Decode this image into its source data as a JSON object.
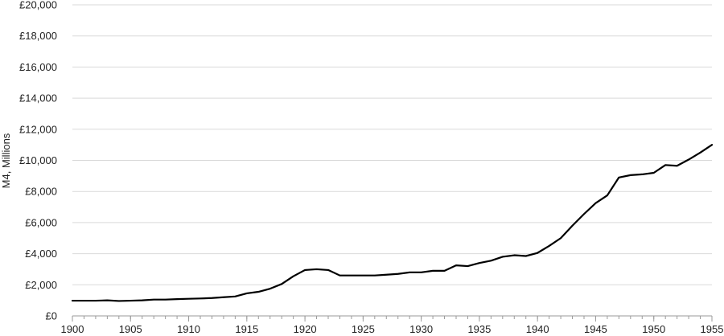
{
  "chart_data": {
    "type": "line",
    "title": "",
    "xlabel": "",
    "ylabel": "M4, Millions",
    "xlim": [
      1900,
      1955
    ],
    "ylim": [
      0,
      20000
    ],
    "grid": true,
    "legend": "none",
    "x_ticks": [
      "1900",
      "1905",
      "1910",
      "1915",
      "1920",
      "1925",
      "1930",
      "1935",
      "1940",
      "1945",
      "1950",
      "1955"
    ],
    "y_ticks": [
      "£0",
      "£2,000",
      "£4,000",
      "£6,000",
      "£8,000",
      "£10,000",
      "£12,000",
      "£14,000",
      "£16,000",
      "£18,000",
      "£20,000"
    ],
    "y_tick_values": [
      0,
      2000,
      4000,
      6000,
      8000,
      10000,
      12000,
      14000,
      16000,
      18000,
      20000
    ],
    "x_tick_values": [
      1900,
      1905,
      1910,
      1915,
      1920,
      1925,
      1930,
      1935,
      1940,
      1945,
      1950,
      1955
    ],
    "series": [
      {
        "color": "#000000",
        "x": [
          1900,
          1901,
          1902,
          1903,
          1904,
          1905,
          1906,
          1907,
          1908,
          1909,
          1910,
          1911,
          1912,
          1913,
          1914,
          1915,
          1916,
          1917,
          1918,
          1919,
          1920,
          1921,
          1922,
          1923,
          1924,
          1925,
          1926,
          1927,
          1928,
          1929,
          1930,
          1931,
          1932,
          1933,
          1934,
          1935,
          1936,
          1937,
          1938,
          1939,
          1940,
          1941,
          1942,
          1943,
          1944,
          1945,
          1946,
          1947,
          1948,
          1949,
          1950,
          1951,
          1952,
          1953,
          1954,
          1955
        ],
        "values": [
          980,
          980,
          980,
          1000,
          960,
          980,
          1000,
          1050,
          1050,
          1080,
          1100,
          1120,
          1150,
          1200,
          1250,
          1450,
          1550,
          1750,
          2050,
          2550,
          2950,
          3000,
          2950,
          2600,
          2600,
          2600,
          2600,
          2650,
          2700,
          2800,
          2800,
          2900,
          2900,
          3250,
          3200,
          3400,
          3550,
          3800,
          3900,
          3850,
          4050,
          4500,
          5000,
          5800,
          6550,
          7250,
          7750,
          8900,
          9050,
          9100,
          9200,
          9700,
          9650,
          10050,
          10500,
          11000
        ]
      }
    ]
  }
}
